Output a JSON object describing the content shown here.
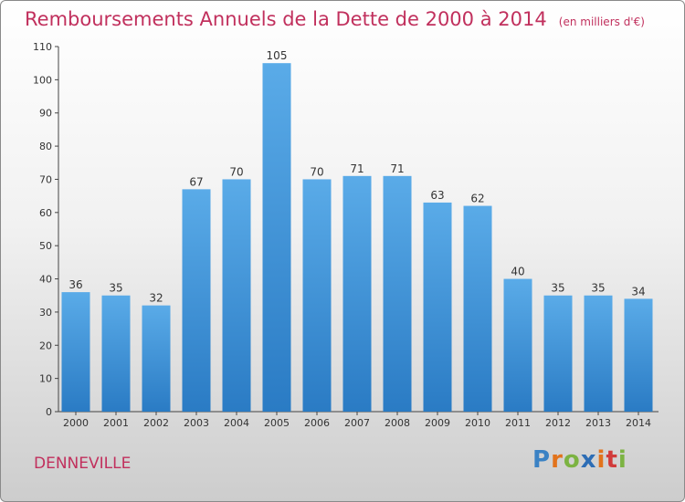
{
  "chart_data": {
    "type": "bar",
    "title": "Remboursements Annuels de la Dette de 2000 à 2014",
    "unit": "(en milliers d'€)",
    "categories": [
      "2000",
      "2001",
      "2002",
      "2003",
      "2004",
      "2005",
      "2006",
      "2007",
      "2008",
      "2009",
      "2010",
      "2011",
      "2012",
      "2013",
      "2014"
    ],
    "values": [
      36,
      35,
      32,
      67,
      70,
      105,
      70,
      71,
      71,
      63,
      62,
      40,
      35,
      35,
      34
    ],
    "ylim": [
      0,
      110
    ],
    "yticks": [
      0,
      10,
      20,
      30,
      40,
      50,
      60,
      70,
      80,
      90,
      100,
      110
    ],
    "grid": false,
    "bar_color_top": "#5aabe8",
    "bar_color_bottom": "#2a7bc4"
  },
  "footer": {
    "place": "DENNEVILLE",
    "brand": "Proxiti"
  }
}
